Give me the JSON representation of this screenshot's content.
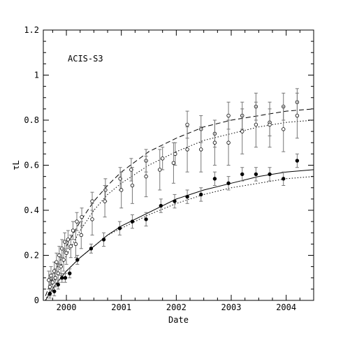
{
  "chart_data": {
    "type": "scatter",
    "title": "",
    "annotation": "ACIS-S3",
    "xlabel": "Date",
    "ylabel": "τL",
    "xlim": [
      1999.58,
      2004.5
    ],
    "ylim": [
      0,
      1.2
    ],
    "x_ticks": [
      2000,
      2001,
      2002,
      2003,
      2004
    ],
    "x_tick_labels": [
      "2000",
      "2001",
      "2002",
      "2003",
      "2004"
    ],
    "y_ticks": [
      0,
      0.2,
      0.4,
      0.6,
      0.8,
      1.0,
      1.2
    ],
    "y_tick_labels": [
      "0",
      "0.2",
      "0.4",
      "0.6",
      "0.8",
      "1",
      "1.2"
    ],
    "grid": false,
    "colors": {
      "axis": "#000000",
      "marker": "#000000",
      "error_bar": "#777777"
    },
    "series": [
      {
        "marker": "open-circle",
        "x": [
          1999.68,
          1999.72,
          1999.78,
          1999.82,
          1999.87,
          1999.92,
          1999.97,
          2000.03,
          2000.12,
          2000.19,
          2000.28,
          2000.47,
          2000.71,
          2000.98,
          2001.18,
          2001.45,
          2001.75,
          2001.98,
          2002.2,
          2002.45,
          2002.7,
          2002.95,
          2003.2,
          2003.45,
          2003.7,
          2003.95,
          2004.2
        ],
        "y": [
          0.09,
          0.11,
          0.13,
          0.17,
          0.2,
          0.23,
          0.26,
          0.27,
          0.31,
          0.35,
          0.37,
          0.44,
          0.49,
          0.54,
          0.58,
          0.62,
          0.63,
          0.65,
          0.78,
          0.76,
          0.74,
          0.82,
          0.82,
          0.86,
          0.79,
          0.86,
          0.88
        ],
        "err": [
          0.04,
          0.04,
          0.04,
          0.04,
          0.04,
          0.04,
          0.04,
          0.04,
          0.04,
          0.04,
          0.04,
          0.04,
          0.05,
          0.05,
          0.05,
          0.05,
          0.05,
          0.05,
          0.06,
          0.06,
          0.06,
          0.06,
          0.06,
          0.06,
          0.06,
          0.06,
          0.06
        ]
      },
      {
        "marker": "open-circle",
        "x": [
          1999.7,
          1999.75,
          1999.8,
          1999.85,
          1999.9,
          1999.95,
          2000.0,
          2000.08,
          2000.17,
          2000.27,
          2000.47,
          2000.7,
          2001.0,
          2001.2,
          2001.45,
          2001.7,
          2001.95,
          2002.2,
          2002.45,
          2002.7,
          2002.95,
          2003.2,
          2003.45,
          2003.7,
          2003.95,
          2004.2
        ],
        "y": [
          0.06,
          0.08,
          0.1,
          0.12,
          0.15,
          0.18,
          0.21,
          0.24,
          0.25,
          0.29,
          0.36,
          0.44,
          0.49,
          0.51,
          0.55,
          0.58,
          0.61,
          0.67,
          0.67,
          0.7,
          0.7,
          0.75,
          0.78,
          0.78,
          0.76,
          0.82
        ],
        "err": [
          0.04,
          0.04,
          0.04,
          0.04,
          0.04,
          0.05,
          0.05,
          0.05,
          0.06,
          0.06,
          0.07,
          0.07,
          0.08,
          0.08,
          0.09,
          0.09,
          0.09,
          0.1,
          0.1,
          0.1,
          0.1,
          0.1,
          0.1,
          0.1,
          0.1,
          0.1
        ]
      },
      {
        "marker": "filled-circle",
        "x": [
          1999.7,
          1999.78,
          1999.85,
          1999.92,
          1999.98,
          2000.06,
          2000.2,
          2000.45,
          2000.68,
          2000.97,
          2001.2,
          2001.45,
          2001.72,
          2001.97,
          2002.2,
          2002.45,
          2002.7,
          2002.95,
          2003.2,
          2003.45,
          2003.7,
          2003.95,
          2004.2
        ],
        "y": [
          0.03,
          0.04,
          0.07,
          0.1,
          0.1,
          0.12,
          0.18,
          0.23,
          0.27,
          0.32,
          0.35,
          0.36,
          0.42,
          0.44,
          0.46,
          0.47,
          0.54,
          0.52,
          0.56,
          0.56,
          0.56,
          0.54,
          0.62
        ],
        "err": [
          0.02,
          0.02,
          0.02,
          0.02,
          0.02,
          0.02,
          0.02,
          0.02,
          0.03,
          0.03,
          0.03,
          0.03,
          0.03,
          0.03,
          0.03,
          0.03,
          0.03,
          0.03,
          0.03,
          0.03,
          0.03,
          0.03,
          0.03
        ]
      }
    ],
    "curves": [
      {
        "style": "dashed",
        "x": [
          1999.62,
          1999.8,
          2000.0,
          2000.25,
          2000.5,
          2000.75,
          2001.0,
          2001.5,
          2002.0,
          2002.5,
          2003.0,
          2003.5,
          2004.0,
          2004.5
        ],
        "y": [
          0.02,
          0.13,
          0.24,
          0.35,
          0.44,
          0.51,
          0.57,
          0.66,
          0.72,
          0.77,
          0.8,
          0.82,
          0.84,
          0.85
        ]
      },
      {
        "style": "dotted",
        "x": [
          1999.62,
          1999.8,
          2000.0,
          2000.25,
          2000.5,
          2000.75,
          2001.0,
          2001.5,
          2002.0,
          2002.5,
          2003.0,
          2003.5,
          2004.0,
          2004.5
        ],
        "y": [
          0.0,
          0.1,
          0.2,
          0.31,
          0.4,
          0.47,
          0.52,
          0.6,
          0.66,
          0.71,
          0.74,
          0.77,
          0.79,
          0.8
        ]
      },
      {
        "style": "solid",
        "x": [
          1999.62,
          1999.8,
          2000.0,
          2000.25,
          2000.5,
          2000.75,
          2001.0,
          2001.5,
          2002.0,
          2002.5,
          2003.0,
          2003.5,
          2004.0,
          2004.5
        ],
        "y": [
          0.0,
          0.07,
          0.13,
          0.19,
          0.24,
          0.29,
          0.33,
          0.39,
          0.45,
          0.49,
          0.52,
          0.55,
          0.57,
          0.58
        ]
      },
      {
        "style": "dotted",
        "x": [
          1999.62,
          1999.8,
          2000.0,
          2000.25,
          2000.5,
          2000.75,
          2001.0,
          2001.5,
          2002.0,
          2002.5,
          2003.0,
          2003.5,
          2004.0,
          2004.5
        ],
        "y": [
          0.0,
          0.07,
          0.13,
          0.19,
          0.24,
          0.29,
          0.32,
          0.38,
          0.43,
          0.47,
          0.5,
          0.52,
          0.54,
          0.55
        ]
      }
    ]
  }
}
